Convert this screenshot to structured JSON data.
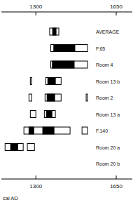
{
  "chart_data": {
    "type": "range",
    "x_label": "cal AD",
    "categories": [
      "AVERAGE",
      "F.65",
      "Room 4",
      "Room 13 b",
      "Room 2",
      "Room 13 a",
      "F.140",
      "Room 20 a",
      "Room 20 b"
    ],
    "ranges": [
      [
        [
          1360,
          1400
        ]
      ],
      [
        [
          1365,
          1525
        ]
      ],
      [
        [
          1365,
          1525
        ]
      ],
      [
        [
          1276,
          1282
        ],
        [
          1343,
          1410
        ]
      ],
      [
        [
          1270,
          1282
        ],
        [
          1340,
          1410
        ],
        [
          1519,
          1525
        ]
      ],
      [
        [
          1276,
          1300
        ],
        [
          1337,
          1385
        ]
      ],
      [
        [
          1248,
          1449
        ],
        [
          1501,
          1525
        ]
      ],
      [
        [
          1166,
          1245
        ],
        [
          1263,
          1294
        ]
      ],
      []
    ],
    "cores": [
      [
        [
          1373,
          1388
        ]
      ],
      [
        [
          1378,
          1470
        ]
      ],
      [
        [
          1372,
          1467
        ]
      ],
      [
        [
          1352,
          1385
        ]
      ],
      [
        [
          1349,
          1382
        ]
      ],
      [
        [
          1346,
          1370
        ]
      ],
      [
        [
          1270,
          1291
        ],
        [
          1330,
          1379
        ]
      ],
      [
        [
          1190,
          1221
        ]
      ],
      []
    ],
    "color": "#000000",
    "xlim": [
      1150,
      1720
    ],
    "xticks": [
      1300,
      1650
    ]
  }
}
